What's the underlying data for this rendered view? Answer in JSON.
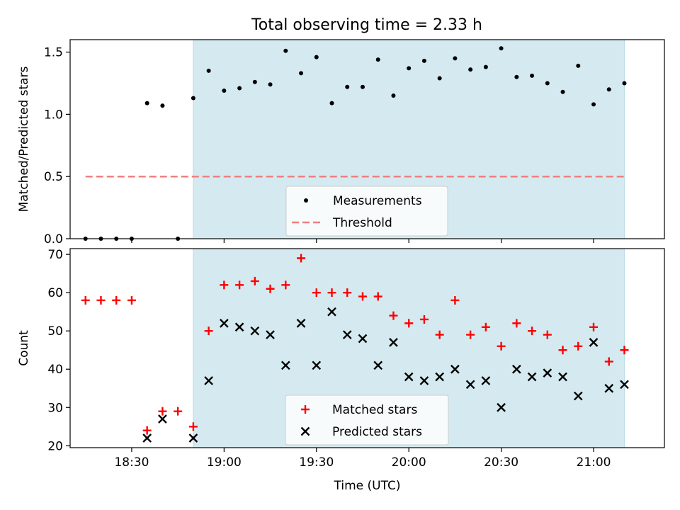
{
  "title": "Total observing time = 2.33 h",
  "colors": {
    "band": "#d4eaf0",
    "threshold": "#f08080",
    "matched": "#ff0000",
    "predicted": "#000000",
    "measurement": "#000000"
  },
  "chart_data": [
    {
      "type": "scatter",
      "panel": "top",
      "ylabel": "Matched/Predicted stars",
      "ylim": [
        0,
        1.6
      ],
      "yticks": [
        "0.0",
        "0.5",
        "1.0",
        "1.5"
      ],
      "ytick_values": [
        0,
        0.5,
        1.0,
        1.5
      ],
      "xlim": [
        "18:10",
        "21:23"
      ],
      "legend": [
        "Measurements",
        "Threshold"
      ],
      "legend_position": "lower center",
      "shaded_span": [
        "18:50",
        "21:10"
      ],
      "threshold": {
        "name": "Threshold",
        "y": 0.5,
        "x": [
          "18:15",
          "21:10"
        ]
      },
      "series": [
        {
          "name": "Measurements",
          "x": [
            "18:15",
            "18:20",
            "18:25",
            "18:30",
            "18:35",
            "18:40",
            "18:45",
            "18:50",
            "18:55",
            "19:00",
            "19:05",
            "19:10",
            "19:15",
            "19:20",
            "19:25",
            "19:30",
            "19:35",
            "19:40",
            "19:45",
            "19:50",
            "19:55",
            "20:00",
            "20:05",
            "20:10",
            "20:15",
            "20:20",
            "20:25",
            "20:30",
            "20:35",
            "20:40",
            "20:45",
            "20:50",
            "20:55",
            "21:00",
            "21:05",
            "21:10"
          ],
          "y": [
            0,
            0,
            0,
            0,
            1.09,
            1.07,
            0,
            1.13,
            1.35,
            1.19,
            1.21,
            1.26,
            1.24,
            1.51,
            1.33,
            1.46,
            1.09,
            1.22,
            1.22,
            1.44,
            1.15,
            1.37,
            1.43,
            1.29,
            1.45,
            1.36,
            1.38,
            1.53,
            1.3,
            1.31,
            1.25,
            1.18,
            1.39,
            1.08,
            1.2,
            1.25
          ]
        }
      ]
    },
    {
      "type": "scatter",
      "panel": "bottom",
      "xlabel": "Time (UTC)",
      "ylabel": "Count",
      "ylim": [
        19.5,
        71.5
      ],
      "yticks": [
        "20",
        "30",
        "40",
        "50",
        "60",
        "70"
      ],
      "ytick_values": [
        20,
        30,
        40,
        50,
        60,
        70
      ],
      "xlim": [
        "18:10",
        "21:23"
      ],
      "xticks": [
        "18:30",
        "19:00",
        "19:30",
        "20:00",
        "20:30",
        "21:00"
      ],
      "legend": [
        "Matched stars",
        "Predicted stars"
      ],
      "legend_position": "lower center",
      "shaded_span": [
        "18:50",
        "21:10"
      ],
      "series": [
        {
          "name": "Matched stars",
          "marker": "+",
          "x": [
            "18:15",
            "18:20",
            "18:25",
            "18:30",
            "18:35",
            "18:40",
            "18:45",
            "18:50",
            "18:55",
            "19:00",
            "19:05",
            "19:10",
            "19:15",
            "19:20",
            "19:25",
            "19:30",
            "19:35",
            "19:40",
            "19:45",
            "19:50",
            "19:55",
            "20:00",
            "20:05",
            "20:10",
            "20:15",
            "20:20",
            "20:25",
            "20:30",
            "20:35",
            "20:40",
            "20:45",
            "20:50",
            "20:55",
            "21:00",
            "21:05",
            "21:10"
          ],
          "y": [
            58,
            58,
            58,
            58,
            24,
            29,
            29,
            25,
            50,
            62,
            62,
            63,
            61,
            62,
            69,
            60,
            60,
            60,
            59,
            59,
            54,
            52,
            53,
            49,
            58,
            49,
            51,
            46,
            52,
            50,
            49,
            45,
            46,
            51,
            42,
            45
          ]
        },
        {
          "name": "Predicted stars",
          "marker": "x",
          "x": [
            "18:35",
            "18:40",
            "18:50",
            "18:55",
            "19:00",
            "19:05",
            "19:10",
            "19:15",
            "19:20",
            "19:25",
            "19:30",
            "19:35",
            "19:40",
            "19:45",
            "19:50",
            "19:55",
            "20:00",
            "20:05",
            "20:10",
            "20:15",
            "20:20",
            "20:25",
            "20:30",
            "20:35",
            "20:40",
            "20:45",
            "20:50",
            "20:55",
            "21:00",
            "21:05",
            "21:10"
          ],
          "y": [
            22,
            27,
            22,
            37,
            52,
            51,
            50,
            49,
            41,
            52,
            41,
            55,
            49,
            48,
            41,
            47,
            38,
            37,
            38,
            40,
            36,
            37,
            30,
            40,
            38,
            39,
            38,
            33,
            47,
            35,
            36
          ]
        }
      ]
    }
  ]
}
